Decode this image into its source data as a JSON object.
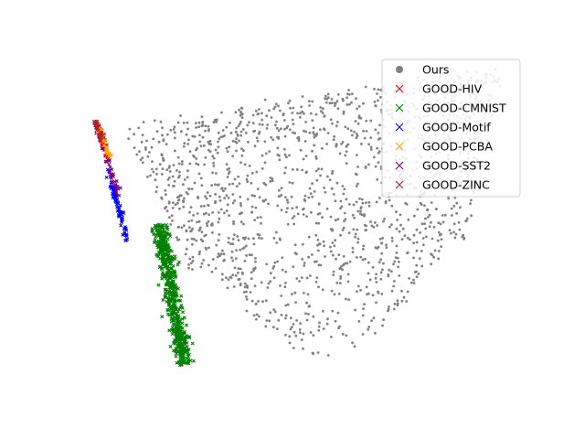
{
  "chart_data": {
    "type": "scatter",
    "axes_visible": false,
    "grid": false,
    "legend_placement": "top-right",
    "legend": [
      {
        "label": "Ours",
        "marker": "dot",
        "color": "#808080"
      },
      {
        "label": "GOOD-HIV",
        "marker": "x",
        "color": "#ff0000"
      },
      {
        "label": "GOOD-CMNIST",
        "marker": "x",
        "color": "#008000"
      },
      {
        "label": "GOOD-Motif",
        "marker": "x",
        "color": "#0000ff"
      },
      {
        "label": "GOOD-PCBA",
        "marker": "x",
        "color": "#ffa500"
      },
      {
        "label": "GOOD-SST2",
        "marker": "x",
        "color": "#800080"
      },
      {
        "label": "GOOD-ZINC",
        "marker": "x",
        "color": "#a52a2a"
      }
    ],
    "series": [
      {
        "name": "Ours",
        "color": "#808080",
        "marker": "dot",
        "count": 1500,
        "region": "large quadrilateral spread, upper-middle to right"
      },
      {
        "name": "GOOD-CMNIST",
        "color": "#008000",
        "marker": "x",
        "count": 600,
        "region": "narrow diagonal band, lower-left"
      },
      {
        "name": "GOOD-Motif",
        "color": "#0000ff",
        "marker": "x",
        "count": 80,
        "region": "thin diagonal strand, upper-left"
      },
      {
        "name": "GOOD-SST2",
        "color": "#800080",
        "marker": "x",
        "count": 60,
        "region": "thin diagonal strand, upper-left"
      },
      {
        "name": "GOOD-HIV",
        "color": "#ff0000",
        "marker": "x",
        "count": 35,
        "region": "top of upper-left strand"
      },
      {
        "name": "GOOD-PCBA",
        "color": "#ffa500",
        "marker": "x",
        "count": 25,
        "region": "top of upper-left strand"
      },
      {
        "name": "GOOD-ZINC",
        "color": "#a52a2a",
        "marker": "x",
        "count": 20,
        "region": "top of upper-left strand"
      }
    ]
  }
}
